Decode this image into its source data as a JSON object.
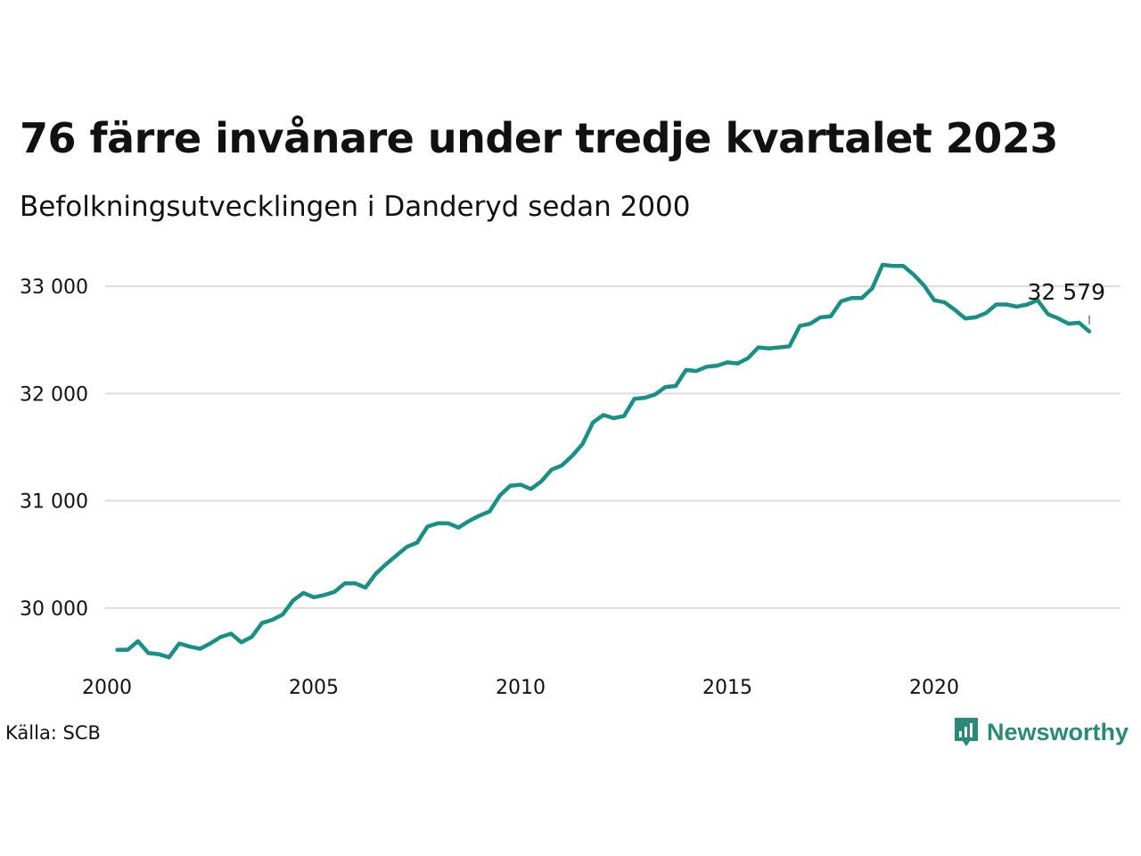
{
  "header": {
    "title": "76 färre invånare under tredje kvartalet 2023",
    "subtitle": "Befolkningsutvecklingen i Danderyd sedan 2000"
  },
  "footer": {
    "source": "Källa: SCB",
    "brand": "Newsworthy"
  },
  "colors": {
    "line": "#1a8f85",
    "grid": "#dddddd",
    "text": "#111111",
    "brand": "#2a8a78"
  },
  "chart_data": {
    "type": "line",
    "title": "76 färre invånare under tredje kvartalet 2023",
    "subtitle": "Befolkningsutvecklingen i Danderyd sedan 2000",
    "xlabel": "",
    "ylabel": "",
    "grid": true,
    "legend": "none",
    "xlim": [
      2000.0,
      2023.75
    ],
    "ylim": [
      29500,
      33200
    ],
    "x_ticks": [
      2000,
      2005,
      2010,
      2015,
      2020
    ],
    "x_tick_labels": [
      "2000",
      "2005",
      "2010",
      "2015",
      "2020"
    ],
    "y_ticks": [
      30000,
      31000,
      32000,
      33000
    ],
    "y_tick_labels": [
      "30 000",
      "31 000",
      "32 000",
      "33 000"
    ],
    "end_label": "32 579",
    "series": [
      {
        "x_start": 2000.25,
        "x_step": 0.25,
        "values": [
          29610,
          29610,
          29690,
          29580,
          29570,
          29540,
          29670,
          29640,
          29620,
          29670,
          29730,
          29760,
          29680,
          29730,
          29860,
          29890,
          29940,
          30070,
          30140,
          30100,
          30120,
          30150,
          30230,
          30230,
          30190,
          30320,
          30410,
          30490,
          30570,
          30610,
          30760,
          30790,
          30790,
          30750,
          30810,
          30860,
          30900,
          31050,
          31140,
          31150,
          31110,
          31180,
          31290,
          31330,
          31420,
          31530,
          31730,
          31800,
          31770,
          31790,
          31950,
          31960,
          31990,
          32060,
          32070,
          32220,
          32210,
          32250,
          32260,
          32290,
          32280,
          32330,
          32430,
          32420,
          32430,
          32440,
          32630,
          32650,
          32710,
          32720,
          32860,
          32890,
          32890,
          32980,
          33200,
          33190,
          33190,
          33110,
          33010,
          32870,
          32850,
          32780,
          32700,
          32710,
          32750,
          32830,
          32830,
          32810,
          32830,
          32870,
          32740,
          32700,
          32650,
          32660,
          32579
        ]
      }
    ]
  }
}
